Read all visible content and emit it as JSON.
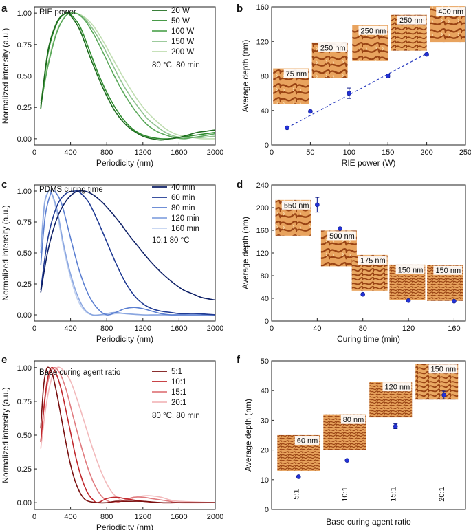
{
  "chart_data": [
    {
      "panel": "a",
      "type": "line",
      "legend_title": "RIE power",
      "note": "80 °C, 80 min",
      "xlabel": "Periodicity (nm)",
      "ylabel": "Normalized intensity (a.u.)",
      "xlim": [
        0,
        2000
      ],
      "ylim": [
        -0.05,
        1.05
      ],
      "xticks": [
        "0",
        "400",
        "800",
        "1200",
        "1600",
        "2000"
      ],
      "yticks": [
        "0.00",
        "0.25",
        "0.50",
        "0.75",
        "1.00"
      ],
      "legend_position": "top-right",
      "series": [
        {
          "name": "20 W",
          "color": "#1d6b1d",
          "x": [
            70,
            150,
            250,
            350,
            400,
            500,
            600,
            700,
            800,
            900,
            1000,
            1100,
            1200,
            1300,
            1400,
            1500,
            1600,
            1700,
            1800,
            1900,
            2000
          ],
          "y": [
            0.24,
            0.7,
            0.93,
            1.0,
            0.98,
            0.87,
            0.68,
            0.5,
            0.34,
            0.21,
            0.12,
            0.06,
            0.02,
            0.0,
            -0.01,
            0.0,
            0.01,
            0.03,
            0.05,
            0.06,
            0.07
          ]
        },
        {
          "name": "50 W",
          "color": "#2e8b2e",
          "x": [
            70,
            150,
            250,
            350,
            400,
            500,
            600,
            700,
            800,
            900,
            1000,
            1100,
            1200,
            1300,
            1400,
            1500,
            1600,
            1700,
            1800,
            1900,
            2000
          ],
          "y": [
            0.24,
            0.68,
            0.92,
            1.0,
            0.99,
            0.9,
            0.72,
            0.53,
            0.37,
            0.24,
            0.14,
            0.07,
            0.03,
            0.01,
            0.0,
            0.0,
            0.01,
            0.02,
            0.03,
            0.04,
            0.05
          ]
        },
        {
          "name": "100 W",
          "color": "#5aa85a",
          "x": [
            70,
            150,
            250,
            350,
            450,
            550,
            650,
            750,
            850,
            950,
            1050,
            1150,
            1250,
            1350,
            1450,
            1550,
            1650,
            1750,
            1850,
            2000
          ],
          "y": [
            0.26,
            0.58,
            0.85,
            0.98,
            1.0,
            0.95,
            0.84,
            0.7,
            0.55,
            0.41,
            0.29,
            0.19,
            0.11,
            0.06,
            0.03,
            0.01,
            0.0,
            0.01,
            0.02,
            0.04
          ]
        },
        {
          "name": "150 W",
          "color": "#8fc28f",
          "x": [
            70,
            150,
            250,
            350,
            450,
            550,
            650,
            750,
            850,
            950,
            1050,
            1150,
            1250,
            1350,
            1450,
            1550,
            1650,
            1750,
            1850,
            2000
          ],
          "y": [
            0.28,
            0.58,
            0.85,
            0.98,
            1.0,
            0.96,
            0.87,
            0.75,
            0.61,
            0.47,
            0.35,
            0.25,
            0.16,
            0.1,
            0.05,
            0.02,
            0.01,
            0.01,
            0.01,
            0.02
          ]
        },
        {
          "name": "200 W",
          "color": "#bfddb0",
          "x": [
            70,
            150,
            250,
            350,
            450,
            550,
            650,
            750,
            850,
            950,
            1050,
            1150,
            1250,
            1350,
            1450,
            1550,
            1650,
            1750,
            1850,
            2000
          ],
          "y": [
            0.3,
            0.6,
            0.86,
            0.98,
            1.0,
            0.97,
            0.9,
            0.79,
            0.66,
            0.53,
            0.41,
            0.3,
            0.21,
            0.14,
            0.08,
            0.04,
            0.02,
            0.01,
            0.0,
            0.0
          ]
        }
      ]
    },
    {
      "panel": "b",
      "type": "scatter",
      "xlabel": "RIE power (W)",
      "ylabel": "Average depth (nm)",
      "xlim": [
        0,
        250
      ],
      "ylim": [
        0,
        160
      ],
      "xticks": [
        "0",
        "50",
        "100",
        "150",
        "200",
        "250"
      ],
      "yticks": [
        "0",
        "40",
        "80",
        "120",
        "160"
      ],
      "fit_line": {
        "x": [
          20,
          200
        ],
        "y": [
          20,
          106
        ]
      },
      "points": [
        {
          "x": 20,
          "y": 20,
          "err": 0
        },
        {
          "x": 50,
          "y": 39,
          "err": 0
        },
        {
          "x": 100,
          "y": 60,
          "err": 6
        },
        {
          "x": 150,
          "y": 80,
          "err": 2
        },
        {
          "x": 200,
          "y": 105,
          "err": 1
        }
      ],
      "insets": [
        {
          "label": "75 nm",
          "at_x": 25,
          "at_y": 68
        },
        {
          "label": "250 nm",
          "at_x": 75,
          "at_y": 98
        },
        {
          "label": "250 nm",
          "at_x": 127,
          "at_y": 118
        },
        {
          "label": "250 nm",
          "at_x": 177,
          "at_y": 130
        },
        {
          "label": "400 nm",
          "at_x": 227,
          "at_y": 140
        }
      ]
    },
    {
      "panel": "c",
      "type": "line",
      "legend_title": "PDMS curing time",
      "note": "10:1 80 °C",
      "xlabel": "Periodicity (nm)",
      "ylabel": "Normalized intensity (a.u.)",
      "xlim": [
        0,
        2000
      ],
      "ylim": [
        -0.05,
        1.05
      ],
      "xticks": [
        "0",
        "400",
        "800",
        "1200",
        "1600",
        "2000"
      ],
      "yticks": [
        "0.00",
        "0.25",
        "0.50",
        "0.75",
        "1.00"
      ],
      "legend_position": "top-right",
      "series": [
        {
          "name": "40 min",
          "color": "#0d1f66",
          "x": [
            70,
            150,
            250,
            350,
            450,
            550,
            650,
            750,
            850,
            950,
            1050,
            1150,
            1250,
            1350,
            1450,
            1550,
            1650,
            1750,
            1850,
            2000
          ],
          "y": [
            0.18,
            0.52,
            0.78,
            0.92,
            0.99,
            1.0,
            0.97,
            0.91,
            0.83,
            0.74,
            0.64,
            0.55,
            0.46,
            0.38,
            0.31,
            0.25,
            0.2,
            0.17,
            0.14,
            0.12
          ]
        },
        {
          "name": "60 min",
          "color": "#1f3a93",
          "x": [
            70,
            150,
            250,
            350,
            450,
            500,
            600,
            700,
            800,
            900,
            1000,
            1100,
            1200,
            1300,
            1400,
            1500,
            1600,
            1700,
            1800,
            2000
          ],
          "y": [
            0.2,
            0.62,
            0.88,
            0.98,
            1.0,
            0.99,
            0.91,
            0.76,
            0.59,
            0.42,
            0.27,
            0.16,
            0.09,
            0.05,
            0.03,
            0.02,
            0.01,
            0.01,
            0.01,
            0.0
          ]
        },
        {
          "name": "80 min",
          "color": "#5b7fd1",
          "x": [
            70,
            120,
            180,
            220,
            300,
            400,
            500,
            600,
            700,
            800,
            900,
            1000,
            1100,
            1200,
            1300,
            1400,
            1500,
            1600,
            2000
          ],
          "y": [
            0.4,
            0.8,
            0.98,
            1.0,
            0.9,
            0.62,
            0.35,
            0.16,
            0.05,
            0.0,
            0.02,
            0.05,
            0.06,
            0.05,
            0.03,
            0.01,
            0.0,
            0.0,
            0.0
          ]
        },
        {
          "name": "120 min",
          "color": "#8aa6e0",
          "x": [
            70,
            110,
            150,
            180,
            250,
            320,
            400,
            480,
            560,
            640,
            720,
            800,
            900,
            1000,
            1200,
            1400,
            2000
          ],
          "y": [
            0.5,
            0.88,
            0.99,
            1.0,
            0.85,
            0.58,
            0.33,
            0.15,
            0.04,
            0.0,
            0.0,
            0.01,
            0.02,
            0.01,
            0.0,
            0.0,
            0.0
          ]
        },
        {
          "name": "160 min",
          "color": "#c3d2f0",
          "x": [
            70,
            110,
            150,
            180,
            250,
            320,
            400,
            480,
            560,
            640,
            720,
            800,
            900,
            1000,
            1200,
            1400,
            2000
          ],
          "y": [
            0.55,
            0.9,
            0.99,
            1.0,
            0.82,
            0.55,
            0.3,
            0.12,
            0.03,
            0.0,
            0.0,
            0.0,
            0.01,
            0.01,
            0.0,
            0.0,
            0.0
          ]
        }
      ]
    },
    {
      "panel": "d",
      "type": "scatter",
      "xlabel": "Curing time (min)",
      "ylabel": "Average depth (nm)",
      "xlim": [
        0,
        170
      ],
      "ylim": [
        0,
        240
      ],
      "xticks": [
        "0",
        "40",
        "80",
        "120",
        "160"
      ],
      "yticks": [
        "0",
        "40",
        "80",
        "120",
        "160",
        "200",
        "240"
      ],
      "points": [
        {
          "x": 40,
          "y": 205,
          "err": 13
        },
        {
          "x": 60,
          "y": 163,
          "err": 0
        },
        {
          "x": 80,
          "y": 47,
          "err": 0
        },
        {
          "x": 120,
          "y": 36,
          "err": 0
        },
        {
          "x": 160,
          "y": 35,
          "err": 0
        }
      ],
      "insets": [
        {
          "label": "550 nm",
          "at_x": 19,
          "at_y": 182
        },
        {
          "label": "500 nm",
          "at_x": 59,
          "at_y": 128
        },
        {
          "label": "175 nm",
          "at_x": 86,
          "at_y": 85
        },
        {
          "label": "150 nm",
          "at_x": 119,
          "at_y": 68
        },
        {
          "label": "150 nm",
          "at_x": 152,
          "at_y": 67
        }
      ]
    },
    {
      "panel": "e",
      "type": "line",
      "legend_title": "Base curing agent ratio",
      "note": "80 °C, 80 min",
      "xlabel": "Periodicity (nm)",
      "ylabel": "Normalized intensity (a.u.)",
      "xlim": [
        0,
        2000
      ],
      "ylim": [
        -0.05,
        1.05
      ],
      "xticks": [
        "0",
        "400",
        "800",
        "1200",
        "1600",
        "2000"
      ],
      "yticks": [
        "0.00",
        "0.25",
        "0.50",
        "0.75",
        "1.00"
      ],
      "legend_position": "top-right",
      "series": [
        {
          "name": "5:1",
          "color": "#7a1010",
          "x": [
            70,
            100,
            130,
            160,
            200,
            250,
            300,
            350,
            400,
            450,
            500,
            550,
            600,
            700,
            800,
            900,
            1000,
            1200,
            1400,
            1600,
            2000
          ],
          "y": [
            0.55,
            0.85,
            0.98,
            1.0,
            0.95,
            0.8,
            0.62,
            0.44,
            0.28,
            0.16,
            0.08,
            0.03,
            0.01,
            0.0,
            0.0,
            0.01,
            0.01,
            0.01,
            0.0,
            0.0,
            0.0
          ]
        },
        {
          "name": "10:1",
          "color": "#c0282d",
          "x": [
            70,
            120,
            160,
            200,
            250,
            300,
            350,
            400,
            450,
            500,
            550,
            600,
            650,
            700,
            800,
            900,
            1000,
            1200,
            1400,
            1600,
            2000
          ],
          "y": [
            0.45,
            0.8,
            0.96,
            1.0,
            0.94,
            0.83,
            0.68,
            0.52,
            0.36,
            0.23,
            0.13,
            0.06,
            0.02,
            0.0,
            0.03,
            0.04,
            0.03,
            0.01,
            0.0,
            0.0,
            0.0
          ]
        },
        {
          "name": "15:1",
          "color": "#e07b7f",
          "x": [
            70,
            120,
            170,
            220,
            280,
            350,
            420,
            500,
            580,
            660,
            740,
            820,
            900,
            1000,
            1100,
            1200,
            1300,
            1400,
            1500,
            1600,
            2000
          ],
          "y": [
            0.45,
            0.78,
            0.95,
            1.0,
            0.96,
            0.84,
            0.66,
            0.46,
            0.28,
            0.14,
            0.05,
            0.01,
            0.0,
            0.02,
            0.04,
            0.04,
            0.03,
            0.02,
            0.01,
            0.0,
            0.0
          ]
        },
        {
          "name": "20:1",
          "color": "#f2b9bb",
          "x": [
            70,
            130,
            190,
            250,
            320,
            400,
            480,
            560,
            640,
            720,
            800,
            880,
            960,
            1040,
            1120,
            1200,
            1300,
            1400,
            1500,
            1600,
            2000
          ],
          "y": [
            0.4,
            0.72,
            0.92,
            1.0,
            0.98,
            0.9,
            0.75,
            0.58,
            0.41,
            0.26,
            0.14,
            0.06,
            0.02,
            0.02,
            0.04,
            0.05,
            0.05,
            0.04,
            0.02,
            0.01,
            0.0
          ]
        }
      ]
    },
    {
      "panel": "f",
      "type": "scatter",
      "xlabel": "Base curing agent ratio",
      "ylabel": "Average depth (nm)",
      "ylim": [
        0,
        50
      ],
      "yticks": [
        "0",
        "10",
        "20",
        "30",
        "40",
        "50"
      ],
      "categories": [
        "5:1",
        "10:1",
        "15:1",
        "20:1"
      ],
      "points": [
        {
          "x": "5:1",
          "y": 11,
          "err": 0
        },
        {
          "x": "10:1",
          "y": 16.5,
          "err": 0
        },
        {
          "x": "15:1",
          "y": 28,
          "err": 0.8
        },
        {
          "x": "20:1",
          "y": 38.5,
          "err": 1.3
        }
      ],
      "insets": [
        {
          "label": "60 nm",
          "at_cat": 0.1,
          "at_y": 19
        },
        {
          "label": "80 nm",
          "at_cat": 1.05,
          "at_y": 26
        },
        {
          "label": "120 nm",
          "at_cat": 2.0,
          "at_y": 37
        },
        {
          "label": "150 nm",
          "at_cat": 2.95,
          "at_y": 43
        }
      ]
    }
  ],
  "colors": {
    "axis": "#222222",
    "marker_fill": "#2332d6",
    "marker_stroke": "#0d1a8c",
    "fit_line": "#2c3ec0",
    "afm_light": "#f0b878",
    "afm_dark": "#8a3a12"
  }
}
